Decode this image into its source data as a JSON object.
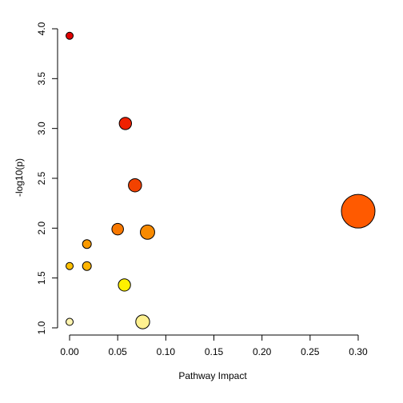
{
  "chart_data": {
    "type": "scatter",
    "title": "",
    "xlabel": "Pathway Impact",
    "ylabel": "-log10(p)",
    "xlim": [
      -0.01,
      0.31
    ],
    "ylim": [
      1.0,
      4.0
    ],
    "x_ticks": [
      0.0,
      0.05,
      0.1,
      0.15,
      0.2,
      0.25,
      0.3
    ],
    "x_tick_labels": [
      "0.00",
      "0.05",
      "0.10",
      "0.15",
      "0.20",
      "0.25",
      "0.30"
    ],
    "y_ticks": [
      1.0,
      1.5,
      2.0,
      2.5,
      3.0,
      3.5,
      4.0
    ],
    "y_tick_labels": [
      "1.0",
      "1.5",
      "2.0",
      "2.5",
      "3.0",
      "3.5",
      "4.0"
    ],
    "grid": false,
    "legend": "none",
    "points": [
      {
        "x": 0.0,
        "y": 3.93,
        "impact_size": 0.0,
        "color": "#E00000"
      },
      {
        "x": 0.058,
        "y": 3.05,
        "impact_size": 0.058,
        "color": "#F02000"
      },
      {
        "x": 0.068,
        "y": 2.43,
        "impact_size": 0.068,
        "color": "#F24200"
      },
      {
        "x": 0.3,
        "y": 2.17,
        "impact_size": 0.3,
        "color": "#FF5A00"
      },
      {
        "x": 0.05,
        "y": 1.99,
        "impact_size": 0.05,
        "color": "#F87800"
      },
      {
        "x": 0.081,
        "y": 1.96,
        "impact_size": 0.081,
        "color": "#F88A00"
      },
      {
        "x": 0.018,
        "y": 1.84,
        "impact_size": 0.018,
        "color": "#FA9A00"
      },
      {
        "x": 0.0,
        "y": 1.62,
        "impact_size": 0.0,
        "color": "#FFC000"
      },
      {
        "x": 0.018,
        "y": 1.62,
        "impact_size": 0.018,
        "color": "#FFB400"
      },
      {
        "x": 0.057,
        "y": 1.43,
        "impact_size": 0.057,
        "color": "#FFF000"
      },
      {
        "x": 0.0,
        "y": 1.06,
        "impact_size": 0.0,
        "color": "#FFF4B0"
      },
      {
        "x": 0.076,
        "y": 1.06,
        "impact_size": 0.076,
        "color": "#FFF190"
      }
    ]
  }
}
